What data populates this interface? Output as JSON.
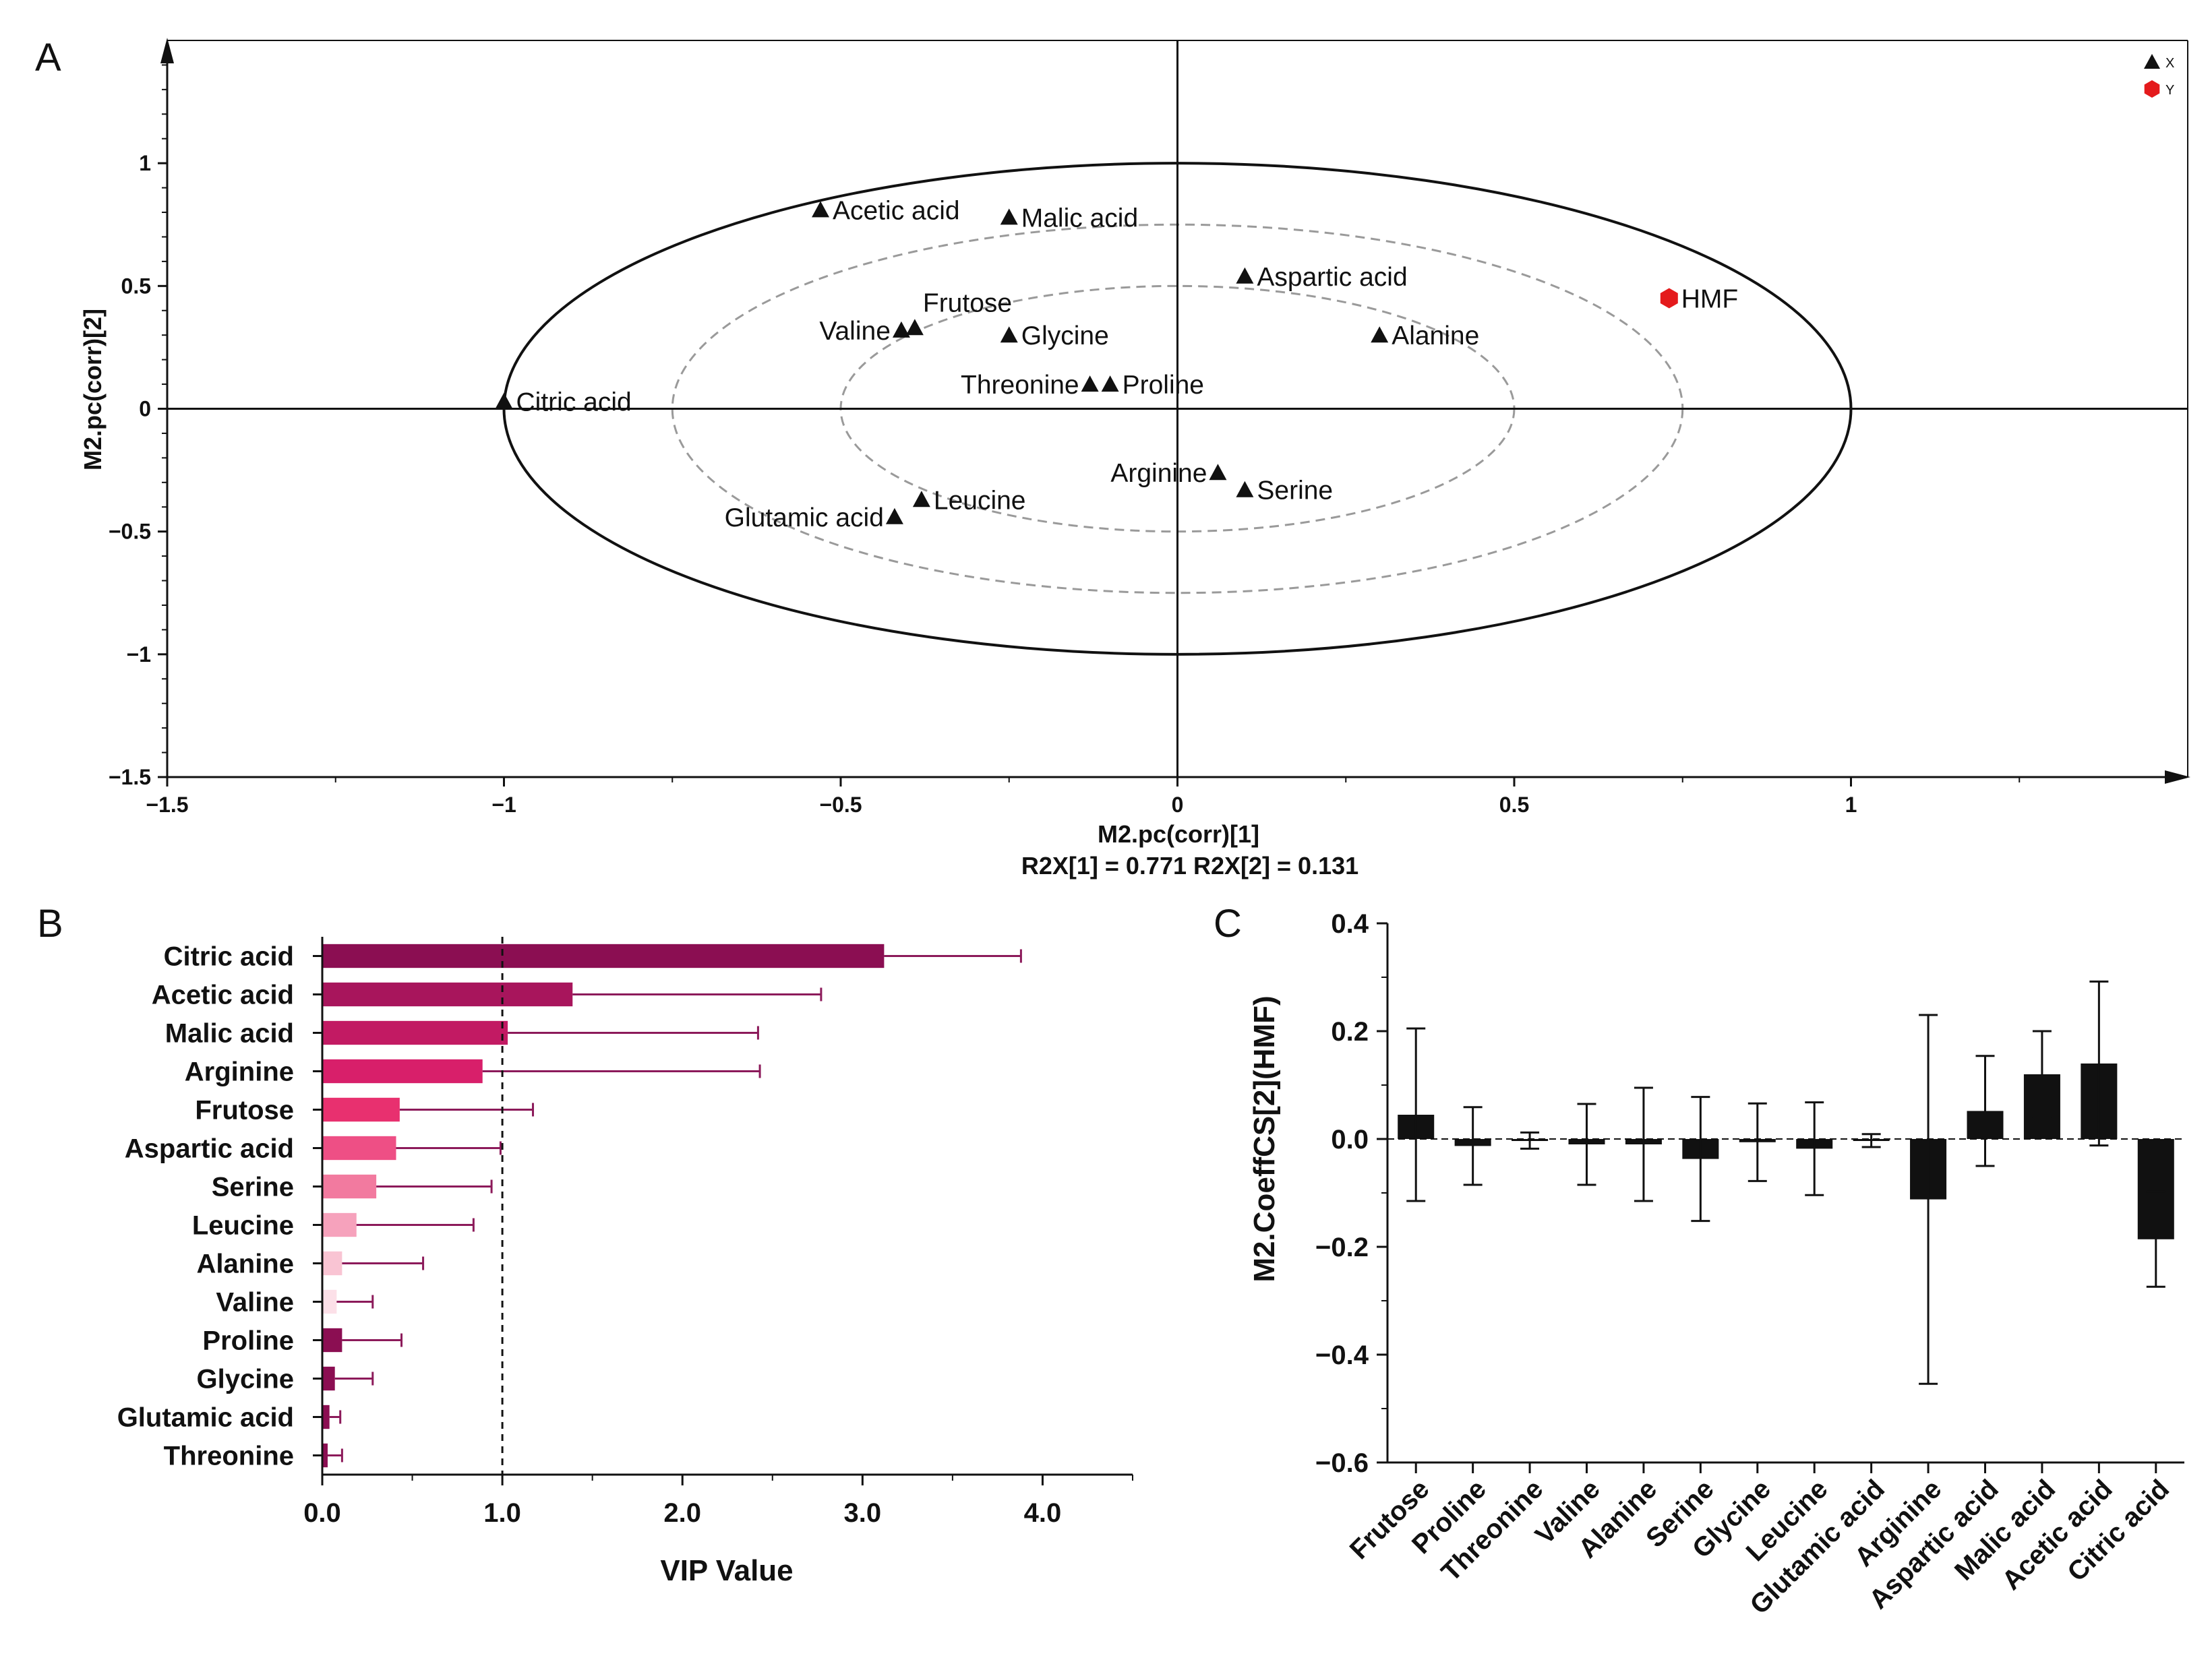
{
  "panel_labels": {
    "a": "A",
    "b": "B",
    "c": "C"
  },
  "colors": {
    "ink": "#111111",
    "y_marker": "#e41a1c",
    "y_label": "#c0141c",
    "dashed": "#9a9a9a",
    "vip_error": "#8c1a5a",
    "vip_bars": [
      "#8b0e52",
      "#a8155c",
      "#c21a63",
      "#d81f6a",
      "#e8306f",
      "#ee4f85",
      "#f27a9f",
      "#f6a2bc",
      "#f9c4d3",
      "#fce0e8",
      "#8b0e52",
      "#8b0e52",
      "#8b0e52",
      "#8b0e52"
    ]
  },
  "chart_data": [
    {
      "id": "loading-plot",
      "type": "scatter",
      "title": "",
      "xlabel": "M2.pc(corr)[1]",
      "subtitle": "R2X[1] = 0.771 R2X[2] = 0.131",
      "ylabel": "M2.pc(corr)[2]",
      "xlim": [
        -1.5,
        1.5
      ],
      "ylim": [
        -1.5,
        1.5
      ],
      "xticks": [
        -1.5,
        -1,
        -0.5,
        0,
        0.5,
        1
      ],
      "yticks": [
        -1.5,
        -1,
        -0.5,
        0,
        0.5,
        1
      ],
      "xtick_labels": [
        "−1.5",
        "−1",
        "−0.5",
        "0",
        "0.5",
        "1"
      ],
      "ytick_labels": [
        "−1.5",
        "−1",
        "−0.5",
        "0",
        "0.5",
        "1"
      ],
      "ellipses": [
        {
          "radius": 1.0,
          "style": "solid"
        },
        {
          "radius": 0.75,
          "style": "dashed"
        },
        {
          "radius": 0.5,
          "style": "dashed"
        }
      ],
      "legend": {
        "position": "top-right",
        "entries": [
          {
            "label": "X",
            "marker": "triangle"
          },
          {
            "label": "Y",
            "marker": "hexagon"
          }
        ]
      },
      "series": [
        {
          "name": "X",
          "marker": "triangle",
          "points": [
            {
              "label": "Acetic acid",
              "x": -0.53,
              "y": 0.81,
              "side": "right"
            },
            {
              "label": "Malic acid",
              "x": -0.25,
              "y": 0.78,
              "side": "right"
            },
            {
              "label": "Aspartic acid",
              "x": 0.1,
              "y": 0.54,
              "side": "right"
            },
            {
              "label": "Frutose",
              "x": -0.39,
              "y": 0.33,
              "side": "above"
            },
            {
              "label": "Valine",
              "x": -0.41,
              "y": 0.32,
              "side": "left"
            },
            {
              "label": "Glycine",
              "x": -0.25,
              "y": 0.3,
              "side": "right"
            },
            {
              "label": "Alanine",
              "x": 0.3,
              "y": 0.3,
              "side": "right"
            },
            {
              "label": "Threonine",
              "x": -0.13,
              "y": 0.1,
              "side": "left"
            },
            {
              "label": "Proline",
              "x": -0.1,
              "y": 0.1,
              "side": "right"
            },
            {
              "label": "Citric acid",
              "x": -1.0,
              "y": 0.03,
              "side": "right"
            },
            {
              "label": "Arginine",
              "x": 0.06,
              "y": -0.26,
              "side": "left"
            },
            {
              "label": "Serine",
              "x": 0.1,
              "y": -0.33,
              "side": "right"
            },
            {
              "label": "Leucine",
              "x": -0.38,
              "y": -0.37,
              "side": "right"
            },
            {
              "label": "Glutamic acid",
              "x": -0.42,
              "y": -0.44,
              "side": "left"
            }
          ]
        },
        {
          "name": "Y",
          "marker": "hexagon",
          "points": [
            {
              "label": "HMF",
              "x": 0.73,
              "y": 0.45,
              "side": "right"
            }
          ]
        }
      ]
    },
    {
      "id": "vip-chart",
      "type": "bar",
      "orientation": "horizontal",
      "xlabel": "VIP Value",
      "xlim": [
        0,
        4.5
      ],
      "xticks": [
        0,
        1,
        2,
        3,
        4
      ],
      "xtick_labels": [
        "0.0",
        "1.0",
        "2.0",
        "3.0",
        "4.0"
      ],
      "threshold": 1.0,
      "categories": [
        "Citric acid",
        "Acetic acid",
        "Malic acid",
        "Arginine",
        "Frutose",
        "Aspartic acid",
        "Serine",
        "Leucine",
        "Alanine",
        "Valine",
        "Proline",
        "Glycine",
        "Glutamic acid",
        "Threonine"
      ],
      "values": [
        3.12,
        1.39,
        1.03,
        0.89,
        0.43,
        0.41,
        0.3,
        0.19,
        0.11,
        0.08,
        0.11,
        0.07,
        0.04,
        0.03
      ],
      "errors": [
        0.76,
        1.38,
        1.39,
        1.54,
        0.74,
        0.58,
        0.64,
        0.65,
        0.45,
        0.2,
        0.33,
        0.21,
        0.06,
        0.08
      ]
    },
    {
      "id": "coef-chart",
      "type": "bar",
      "orientation": "vertical",
      "ylabel": "M2.CoeffCS[2](HMF)",
      "ylim": [
        -0.6,
        0.4
      ],
      "yticks": [
        -0.6,
        -0.4,
        -0.2,
        0.0,
        0.2,
        0.4
      ],
      "ytick_labels": [
        "−0.6",
        "−0.4",
        "−0.2",
        "0.0",
        "0.2",
        "0.4"
      ],
      "categories": [
        "Frutose",
        "Proline",
        "Threonine",
        "Valine",
        "Alanine",
        "Serine",
        "Glycine",
        "Leucine",
        "Glutamic acid",
        "Arginine",
        "Aspartic acid",
        "Malic acid",
        "Acetic acid",
        "Citric acid"
      ],
      "values": [
        0.045,
        -0.013,
        -0.003,
        -0.01,
        -0.01,
        -0.037,
        -0.006,
        -0.018,
        -0.003,
        -0.112,
        0.052,
        0.12,
        0.14,
        -0.186
      ],
      "errors": [
        0.16,
        0.072,
        0.015,
        0.075,
        0.105,
        0.115,
        0.072,
        0.086,
        0.012,
        0.342,
        0.102,
        0.08,
        0.152,
        0.088
      ]
    }
  ]
}
